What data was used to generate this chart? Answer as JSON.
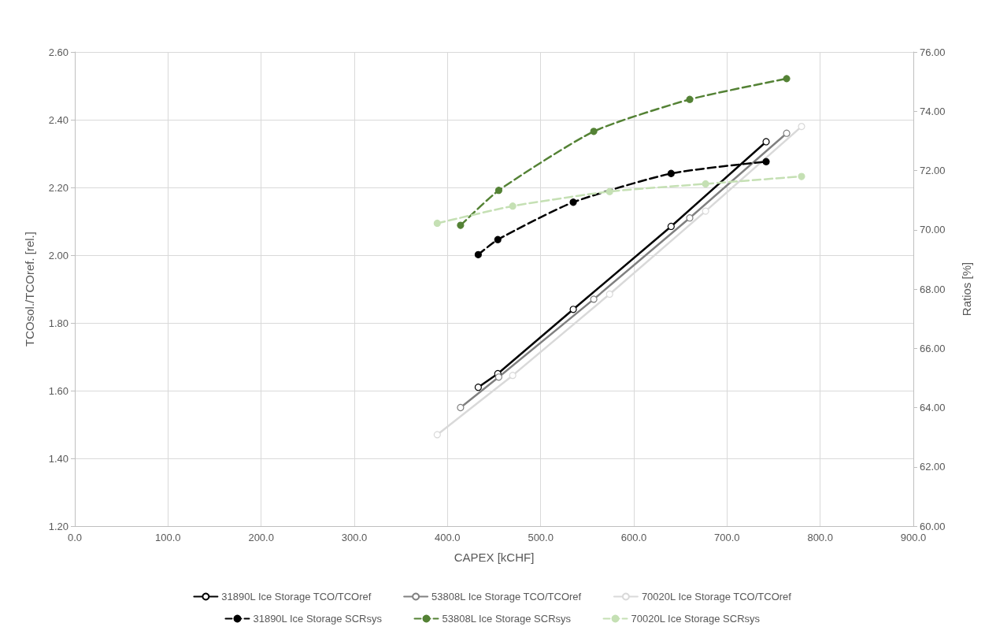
{
  "chart_data": {
    "type": "line",
    "xlabel": "CAPEX [kCHF]",
    "ylabel": "TCOsol./TCOref. [rel.]",
    "y2label": "Ratios [%]",
    "xlim": [
      0,
      900
    ],
    "xticks": [
      {
        "value": 0,
        "label": "0.0"
      },
      {
        "value": 100,
        "label": "100.0"
      },
      {
        "value": 200,
        "label": "200.0"
      },
      {
        "value": 300,
        "label": "300.0"
      },
      {
        "value": 400,
        "label": "400.0"
      },
      {
        "value": 500,
        "label": "500.0"
      },
      {
        "value": 600,
        "label": "600.0"
      },
      {
        "value": 700,
        "label": "700.0"
      },
      {
        "value": 800,
        "label": "800.0"
      },
      {
        "value": 900,
        "label": "900.0"
      }
    ],
    "ylim": [
      1.2,
      2.6
    ],
    "yticks": [
      {
        "value": 1.2,
        "label": "1.20"
      },
      {
        "value": 1.4,
        "label": "1.40"
      },
      {
        "value": 1.6,
        "label": "1.60"
      },
      {
        "value": 1.8,
        "label": "1.80"
      },
      {
        "value": 2.0,
        "label": "2.00"
      },
      {
        "value": 2.2,
        "label": "2.20"
      },
      {
        "value": 2.4,
        "label": "2.40"
      },
      {
        "value": 2.6,
        "label": "2.60"
      }
    ],
    "y2lim": [
      60,
      76
    ],
    "y2ticks": [
      {
        "value": 60,
        "label": "60.00"
      },
      {
        "value": 62,
        "label": "62.00"
      },
      {
        "value": 64,
        "label": "64.00"
      },
      {
        "value": 66,
        "label": "66.00"
      },
      {
        "value": 68,
        "label": "68.00"
      },
      {
        "value": 70,
        "label": "70.00"
      },
      {
        "value": 72,
        "label": "72.00"
      },
      {
        "value": 74,
        "label": "74.00"
      },
      {
        "value": 76,
        "label": "76.00"
      }
    ],
    "grid": true,
    "legend": "bottom",
    "marker": "circle",
    "series": [
      {
        "name": "31890L Ice Storage TCO/TCOref",
        "color": "#000000",
        "line_style": "solid",
        "x": [
          433,
          454,
          535,
          640,
          742
        ],
        "values": [
          1.61,
          1.65,
          1.84,
          2.085,
          2.335
        ]
      },
      {
        "name": "53808L Ice Storage TCO/TCOref",
        "color": "#808080",
        "line_style": "solid",
        "x": [
          414,
          455,
          557,
          660,
          764
        ],
        "values": [
          1.55,
          1.64,
          1.87,
          2.11,
          2.36
        ]
      },
      {
        "name": "70020L Ice Storage TCO/TCOref",
        "color": "#d9d9d9",
        "line_style": "solid",
        "x": [
          389,
          470,
          574,
          677,
          780
        ],
        "values": [
          1.47,
          1.645,
          1.885,
          2.13,
          2.38
        ]
      },
      {
        "name": "31890L Ice Storage SCRsys",
        "color": "#000000",
        "line_style": "dashed",
        "axis": "y2",
        "x": [
          433,
          454,
          535,
          640,
          742
        ],
        "values": [
          69.16,
          69.67,
          70.93,
          71.9,
          72.3
        ]
      },
      {
        "name": "53808L Ice Storage SCRsys",
        "color": "#548235",
        "line_style": "dashed",
        "axis": "y2",
        "x": [
          414,
          455,
          557,
          660,
          764
        ],
        "values": [
          70.15,
          71.33,
          73.32,
          74.4,
          75.1
        ]
      },
      {
        "name": "70020L Ice Storage SCRsys",
        "color": "#c5e0b4",
        "line_style": "dashed",
        "axis": "y2",
        "x": [
          389,
          470,
          574,
          677,
          780
        ],
        "values": [
          70.22,
          70.8,
          71.29,
          71.55,
          71.8
        ]
      }
    ]
  }
}
